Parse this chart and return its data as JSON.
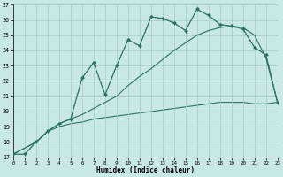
{
  "bg_color": "#c8e8e4",
  "grid_color": "#a0ccc8",
  "line_color": "#2d7060",
  "xlabel": "Humidex (Indice chaleur)",
  "xlim": [
    0,
    23
  ],
  "ylim": [
    17,
    27
  ],
  "xtick_vals": [
    0,
    1,
    2,
    3,
    4,
    5,
    6,
    7,
    8,
    9,
    10,
    11,
    12,
    13,
    14,
    15,
    16,
    17,
    18,
    19,
    20,
    21,
    22,
    23
  ],
  "ytick_vals": [
    17,
    18,
    19,
    20,
    21,
    22,
    23,
    24,
    25,
    26,
    27
  ],
  "line_dotted_x": [
    0,
    1,
    2,
    3,
    4,
    5,
    6,
    7,
    8,
    9,
    10,
    11,
    12,
    13,
    14,
    15,
    16,
    17,
    18,
    19,
    20,
    21,
    22,
    23
  ],
  "line_dotted_y": [
    17.2,
    17.2,
    18.0,
    18.7,
    19.2,
    19.5,
    22.2,
    23.2,
    21.1,
    23.0,
    24.7,
    24.3,
    26.2,
    26.1,
    25.8,
    25.3,
    26.7,
    26.3,
    25.7,
    25.6,
    25.4,
    24.2,
    23.7,
    20.6
  ],
  "line_solid_x": [
    0,
    1,
    2,
    3,
    4,
    5,
    6,
    7,
    8,
    9,
    10,
    11,
    12,
    13,
    14,
    15,
    16,
    17,
    18,
    19,
    20,
    21,
    22,
    23
  ],
  "line_solid_y": [
    17.2,
    17.2,
    18.0,
    18.7,
    19.2,
    19.5,
    22.2,
    23.2,
    21.1,
    23.0,
    24.7,
    24.3,
    26.2,
    26.1,
    25.8,
    25.3,
    26.7,
    26.3,
    25.7,
    25.6,
    25.4,
    24.2,
    23.7,
    20.6
  ],
  "line_upper_diag_x": [
    0,
    2,
    3,
    4,
    5,
    6,
    7,
    8,
    9,
    10,
    11,
    12,
    13,
    14,
    15,
    16,
    17,
    18,
    19,
    20,
    21,
    22,
    23
  ],
  "line_upper_diag_y": [
    17.2,
    18.0,
    18.7,
    19.2,
    19.5,
    19.8,
    20.2,
    20.6,
    21.0,
    21.7,
    22.3,
    22.8,
    23.4,
    24.0,
    24.5,
    25.0,
    25.3,
    25.5,
    25.6,
    25.5,
    25.0,
    23.5,
    20.6
  ],
  "line_lower_flat_x": [
    0,
    2,
    3,
    4,
    5,
    6,
    7,
    8,
    9,
    10,
    11,
    12,
    13,
    14,
    15,
    16,
    17,
    18,
    19,
    20,
    21,
    22,
    23
  ],
  "line_lower_flat_y": [
    17.2,
    18.0,
    18.7,
    19.0,
    19.2,
    19.3,
    19.5,
    19.6,
    19.7,
    19.8,
    19.9,
    20.0,
    20.1,
    20.2,
    20.3,
    20.4,
    20.5,
    20.6,
    20.6,
    20.6,
    20.5,
    20.5,
    20.6
  ]
}
